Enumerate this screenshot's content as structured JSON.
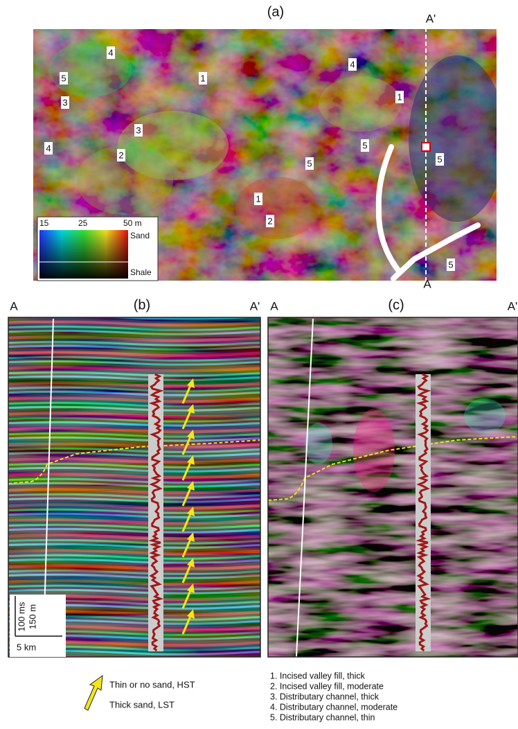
{
  "panel_a": {
    "title": "(a)",
    "section_top": "A'",
    "section_bottom": "A",
    "labels": [
      "4",
      "5",
      "1",
      "4",
      "3",
      "1",
      "3",
      "4",
      "5",
      "5",
      "5",
      "2",
      "1",
      "2",
      "5"
    ],
    "colorbar": {
      "ticks": [
        "15",
        "25",
        "50 m"
      ],
      "top": "Sand",
      "bottom": "Shale"
    }
  },
  "panel_b": {
    "title": "(b)",
    "left": "A",
    "right": "A'",
    "scale": {
      "time": "100 ms",
      "depth": "150 m",
      "distance": "5 km"
    }
  },
  "panel_c": {
    "title": "(c)",
    "left": "A",
    "right": "A'"
  },
  "legend": {
    "arrow_top": "Thin or no sand, HST",
    "arrow_bottom": "Thick sand, LST"
  },
  "key": [
    "1. Incised valley fill, thick",
    "2. Incised valley fill, moderate",
    "3. Distributary channel, thick",
    "4. Distributary channel, moderate",
    "5. Distributary channel, thin"
  ]
}
